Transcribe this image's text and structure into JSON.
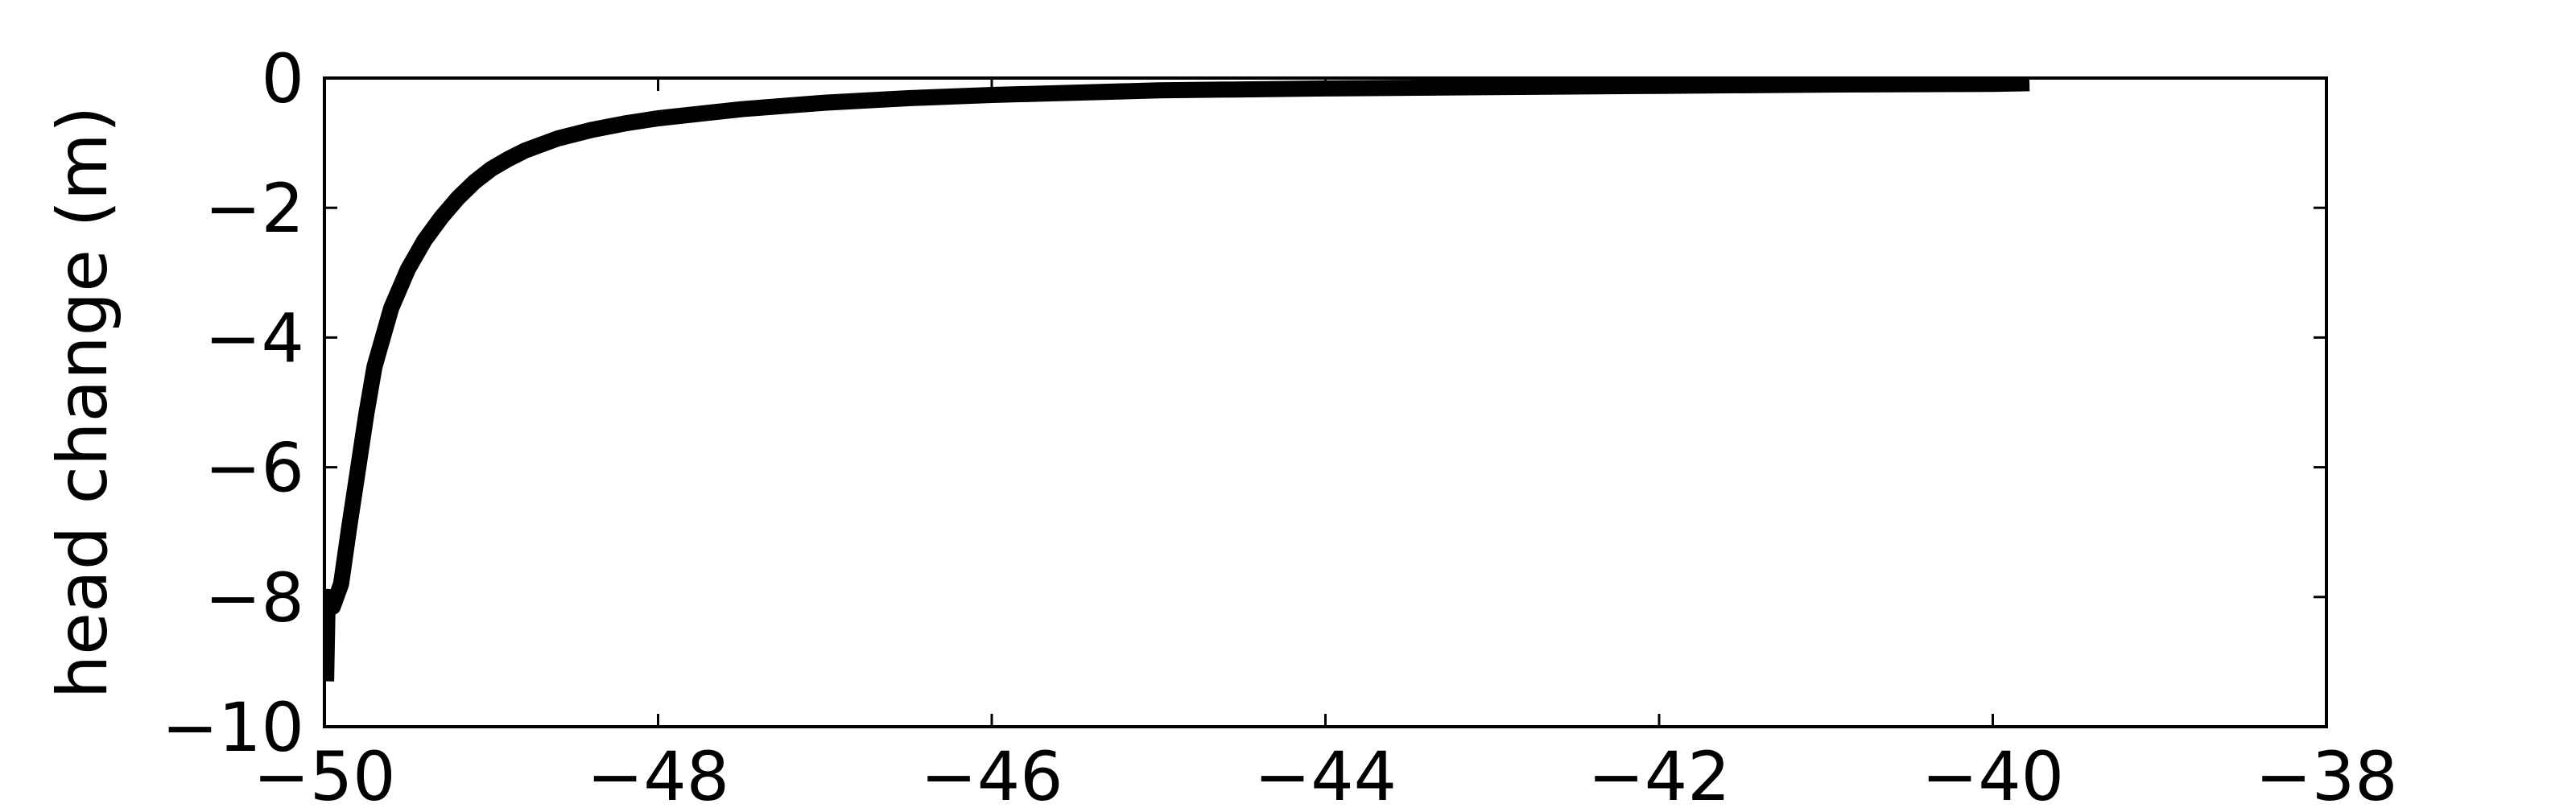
{
  "chart_data": {
    "type": "line",
    "title": "",
    "xlabel": "",
    "ylabel": "head change (m)",
    "xlim": [
      -50,
      -38
    ],
    "ylim": [
      -10,
      0
    ],
    "xticks": [
      -50,
      -48,
      -46,
      -44,
      -42,
      -40,
      -38
    ],
    "xtick_labels": [
      "−50",
      "−48",
      "−46",
      "−44",
      "−42",
      "−40",
      "−38"
    ],
    "yticks": [
      -10,
      -8,
      -6,
      -4,
      -2,
      0
    ],
    "ytick_labels": [
      "−10",
      "−8",
      "−6",
      "−4",
      "−2",
      "0"
    ],
    "grid": false,
    "legend": "none",
    "line_color": "#000000",
    "series": [
      {
        "name": "head change",
        "x": [
          -49.99,
          -49.98,
          -49.95,
          -49.9,
          -49.85,
          -49.8,
          -49.75,
          -49.7,
          -49.6,
          -49.5,
          -49.4,
          -49.3,
          -49.2,
          -49.1,
          -49.0,
          -48.9,
          -48.8,
          -48.6,
          -48.4,
          -48.2,
          -48.0,
          -47.5,
          -47.0,
          -46.5,
          -46.0,
          -45.0,
          -44.0,
          -43.0,
          -42.0,
          -41.0,
          -40.0,
          -39.78
        ],
        "y": [
          -9.3,
          -8.0,
          -8.15,
          -7.8,
          -6.9,
          -6.05,
          -5.2,
          -4.45,
          -3.55,
          -2.95,
          -2.5,
          -2.15,
          -1.85,
          -1.6,
          -1.4,
          -1.25,
          -1.12,
          -0.93,
          -0.8,
          -0.7,
          -0.62,
          -0.48,
          -0.38,
          -0.31,
          -0.26,
          -0.19,
          -0.16,
          -0.14,
          -0.12,
          -0.1,
          -0.09,
          -0.08
        ]
      }
    ]
  }
}
